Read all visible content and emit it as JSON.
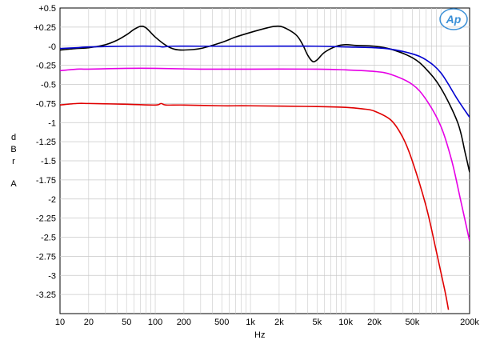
{
  "logo_text": "Ap",
  "colors": {
    "black": "#000000",
    "blue": "#0000d0",
    "magenta": "#e600e6",
    "red": "#e00000",
    "grid": "#c8c8c8",
    "logo": "#3a8fd6"
  },
  "chart_data": {
    "type": "line",
    "title": "",
    "xlabel": "Hz",
    "ylabel_letters": [
      "d",
      "B",
      "r",
      "A"
    ],
    "x_scale": "log",
    "xlim": [
      10,
      200000
    ],
    "ylim": [
      -3.5,
      0.5
    ],
    "grid": true,
    "x_ticks": [
      {
        "value": 10,
        "label": "10"
      },
      {
        "value": 20,
        "label": "20"
      },
      {
        "value": 50,
        "label": "50"
      },
      {
        "value": 100,
        "label": "100"
      },
      {
        "value": 200,
        "label": "200"
      },
      {
        "value": 500,
        "label": "500"
      },
      {
        "value": 1000,
        "label": "1k"
      },
      {
        "value": 2000,
        "label": "2k"
      },
      {
        "value": 5000,
        "label": "5k"
      },
      {
        "value": 10000,
        "label": "10k"
      },
      {
        "value": 20000,
        "label": "20k"
      },
      {
        "value": 50000,
        "label": "50k"
      },
      {
        "value": 200000,
        "label": "200k"
      }
    ],
    "y_ticks": [
      {
        "value": 0.5,
        "label": "+0.5"
      },
      {
        "value": 0.25,
        "label": "+0.25"
      },
      {
        "value": 0,
        "label": "-0"
      },
      {
        "value": -0.25,
        "label": "-0.25"
      },
      {
        "value": -0.5,
        "label": "-0.5"
      },
      {
        "value": -0.75,
        "label": "-0.75"
      },
      {
        "value": -1,
        "label": "-1"
      },
      {
        "value": -1.25,
        "label": "-1.25"
      },
      {
        "value": -1.5,
        "label": "-1.5"
      },
      {
        "value": -1.75,
        "label": "-1.75"
      },
      {
        "value": -2,
        "label": "-2"
      },
      {
        "value": -2.25,
        "label": "-2.25"
      },
      {
        "value": -2.5,
        "label": "-2.5"
      },
      {
        "value": -2.75,
        "label": "-2.75"
      },
      {
        "value": -3,
        "label": "-3"
      },
      {
        "value": -3.25,
        "label": "-3.25"
      }
    ],
    "series": [
      {
        "color": "#000000",
        "points": [
          [
            10,
            -0.05
          ],
          [
            15,
            -0.03
          ],
          [
            20,
            -0.02
          ],
          [
            30,
            0.02
          ],
          [
            40,
            0.08
          ],
          [
            50,
            0.15
          ],
          [
            60,
            0.22
          ],
          [
            70,
            0.26
          ],
          [
            80,
            0.24
          ],
          [
            100,
            0.12
          ],
          [
            130,
            0.01
          ],
          [
            160,
            -0.04
          ],
          [
            200,
            -0.05
          ],
          [
            300,
            -0.03
          ],
          [
            500,
            0.05
          ],
          [
            700,
            0.12
          ],
          [
            1000,
            0.18
          ],
          [
            1500,
            0.24
          ],
          [
            1800,
            0.26
          ],
          [
            2200,
            0.25
          ],
          [
            3000,
            0.15
          ],
          [
            3500,
            0.03
          ],
          [
            4000,
            -0.12
          ],
          [
            4500,
            -0.2
          ],
          [
            5000,
            -0.18
          ],
          [
            6000,
            -0.08
          ],
          [
            8000,
            0.0
          ],
          [
            10000,
            0.02
          ],
          [
            13000,
            0.01
          ],
          [
            20000,
            0.0
          ],
          [
            30000,
            -0.04
          ],
          [
            50000,
            -0.15
          ],
          [
            70000,
            -0.3
          ],
          [
            100000,
            -0.55
          ],
          [
            150000,
            -1.0
          ],
          [
            180000,
            -1.4
          ],
          [
            200000,
            -1.65
          ]
        ]
      },
      {
        "color": "#0000d0",
        "points": [
          [
            10,
            -0.03
          ],
          [
            15,
            -0.02
          ],
          [
            20,
            -0.01
          ],
          [
            50,
            0.0
          ],
          [
            100,
            0.0
          ],
          [
            120,
            -0.01
          ],
          [
            150,
            0.0
          ],
          [
            300,
            0.0
          ],
          [
            1000,
            0.0
          ],
          [
            5000,
            0.0
          ],
          [
            10000,
            -0.01
          ],
          [
            20000,
            -0.02
          ],
          [
            30000,
            -0.04
          ],
          [
            50000,
            -0.1
          ],
          [
            70000,
            -0.18
          ],
          [
            100000,
            -0.35
          ],
          [
            150000,
            -0.7
          ],
          [
            200000,
            -0.93
          ]
        ]
      },
      {
        "color": "#e600e6",
        "points": [
          [
            10,
            -0.32
          ],
          [
            15,
            -0.3
          ],
          [
            20,
            -0.3
          ],
          [
            50,
            -0.29
          ],
          [
            100,
            -0.29
          ],
          [
            300,
            -0.3
          ],
          [
            1000,
            -0.3
          ],
          [
            5000,
            -0.3
          ],
          [
            10000,
            -0.31
          ],
          [
            20000,
            -0.33
          ],
          [
            30000,
            -0.37
          ],
          [
            50000,
            -0.5
          ],
          [
            70000,
            -0.7
          ],
          [
            100000,
            -1.05
          ],
          [
            130000,
            -1.5
          ],
          [
            160000,
            -2.0
          ],
          [
            200000,
            -2.55
          ]
        ]
      },
      {
        "color": "#e00000",
        "points": [
          [
            10,
            -0.77
          ],
          [
            15,
            -0.75
          ],
          [
            20,
            -0.75
          ],
          [
            50,
            -0.76
          ],
          [
            100,
            -0.77
          ],
          [
            115,
            -0.75
          ],
          [
            130,
            -0.77
          ],
          [
            200,
            -0.77
          ],
          [
            500,
            -0.78
          ],
          [
            1000,
            -0.78
          ],
          [
            5000,
            -0.79
          ],
          [
            10000,
            -0.8
          ],
          [
            15000,
            -0.82
          ],
          [
            20000,
            -0.85
          ],
          [
            30000,
            -0.97
          ],
          [
            40000,
            -1.2
          ],
          [
            50000,
            -1.5
          ],
          [
            70000,
            -2.1
          ],
          [
            90000,
            -2.7
          ],
          [
            110000,
            -3.2
          ],
          [
            120000,
            -3.45
          ]
        ]
      }
    ]
  }
}
